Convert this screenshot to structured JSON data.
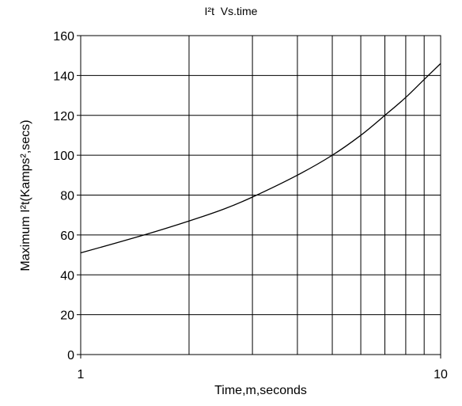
{
  "chart_data": {
    "type": "line",
    "title": "I²t  Vs.time",
    "xlabel": "Time,m,seconds",
    "ylabel": "Maximum I²t(Kamps²,secs)",
    "x_scale": "log",
    "xlim": [
      1,
      10
    ],
    "ylim": [
      0,
      160
    ],
    "x_ticks": [
      1,
      10
    ],
    "x_tick_labels": [
      "1",
      "10"
    ],
    "x_minor_gridlines": [
      2,
      3,
      4,
      5,
      6,
      7,
      8,
      9
    ],
    "y_ticks": [
      0,
      20,
      40,
      60,
      80,
      100,
      120,
      140,
      160
    ],
    "y_tick_labels": [
      "0",
      "20",
      "40",
      "60",
      "80",
      "100",
      "120",
      "140",
      "160"
    ],
    "grid": true,
    "legend": "none",
    "series": [
      {
        "x": [
          1,
          1.5,
          2,
          2.5,
          3,
          4,
          5,
          6,
          7,
          8,
          9,
          10
        ],
        "y": [
          51,
          60,
          67,
          73,
          79,
          90,
          100,
          110,
          120,
          129,
          138,
          146
        ]
      }
    ]
  }
}
